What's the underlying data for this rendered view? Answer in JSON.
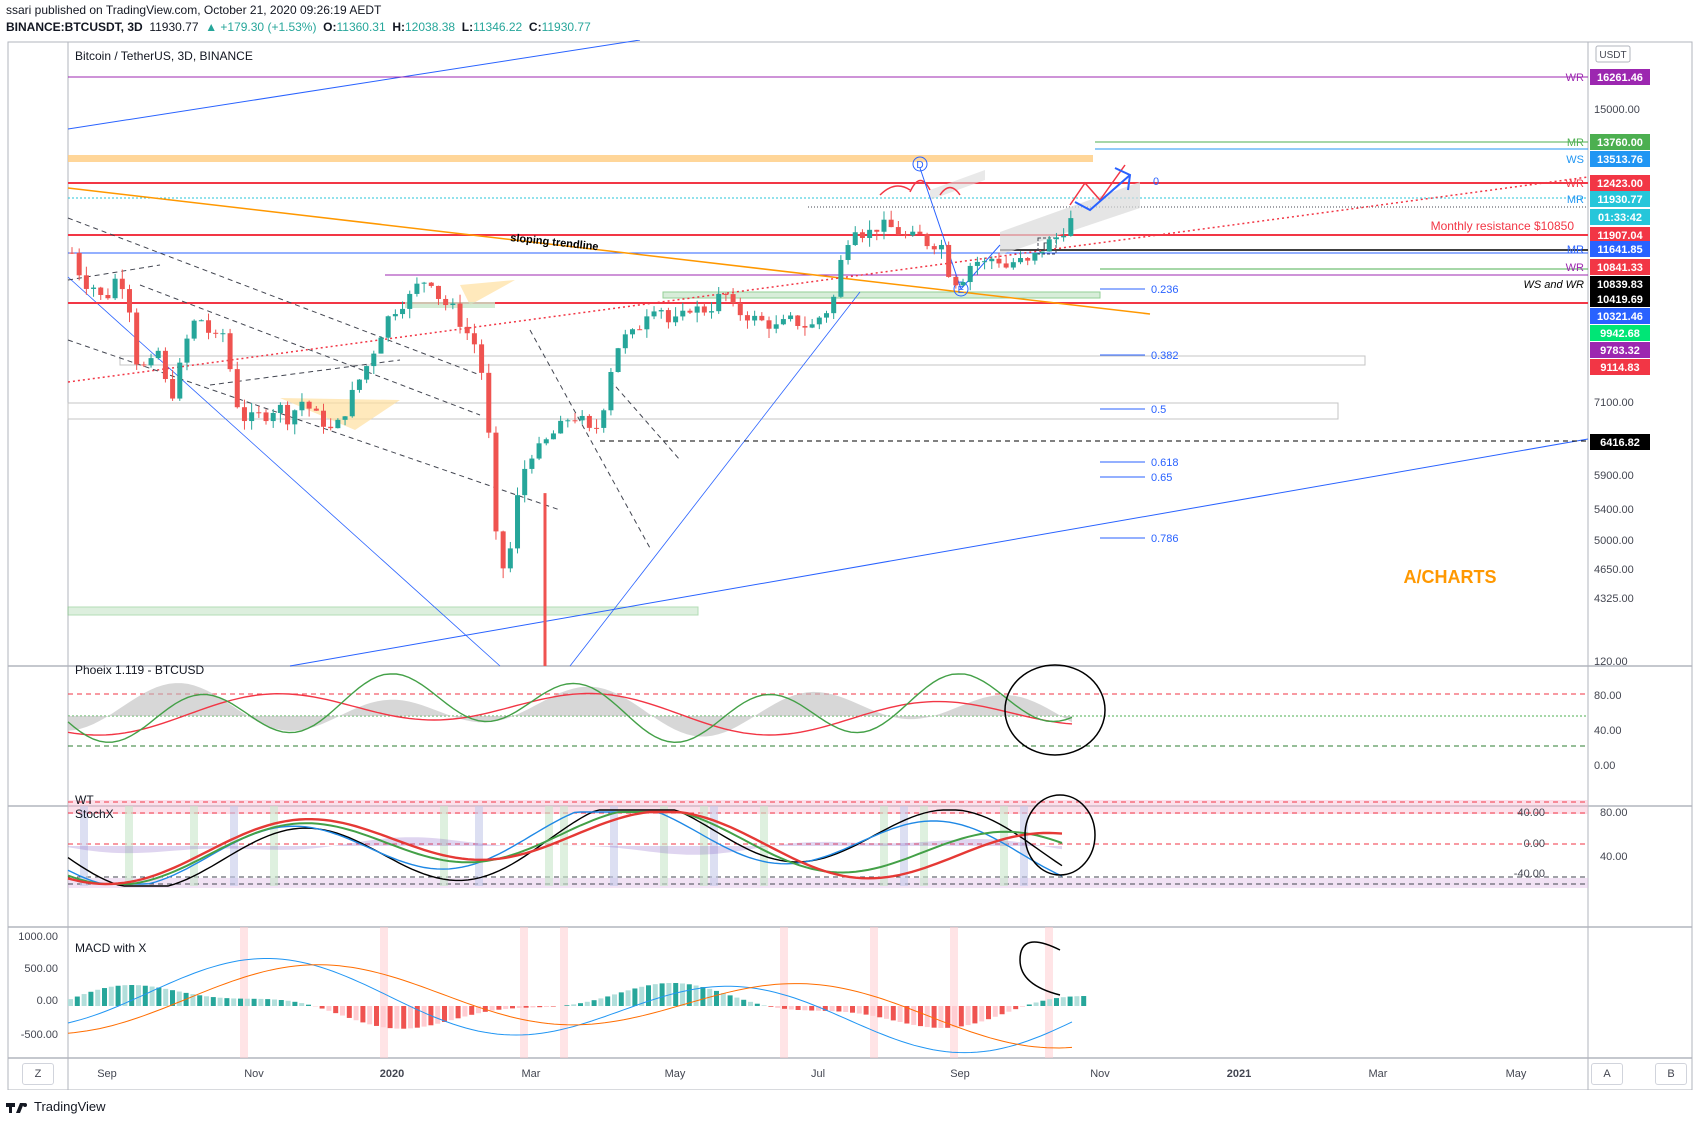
{
  "header": {
    "published": "ssari published on TradingView.com, October 21, 2020 09:26:19 AEDT",
    "symbol": "BINANCE:BTCUSDT, 3D",
    "last": "11930.77",
    "change": "▲ +179.30 (+1.53%)",
    "o_label": "O:",
    "o": "11360.31",
    "h_label": "H:",
    "h": "12038.38",
    "l_label": "L:",
    "l": "11346.22",
    "c_label": "C:",
    "c": "11930.77"
  },
  "colors": {
    "up": "#26a69a",
    "down": "#ef5350",
    "accent_blue": "#2962ff"
  },
  "main_pane": {
    "legend": "Bitcoin / TetherUS, 3D, BINANCE",
    "currency_badge": "USDT",
    "watermark": "A/CHARTS",
    "axis_ticks": [
      "15000.00",
      "7100.00",
      "5900.00",
      "5400.00",
      "5000.00",
      "4650.00",
      "4325.00"
    ],
    "price_labels": [
      {
        "text": "16261.46",
        "bg": "#9c27b0",
        "tag": "WR",
        "tag_color": "#9c27b0"
      },
      {
        "text": "13760.00",
        "bg": "#4caf50",
        "tag": "MR",
        "tag_color": "#4caf50"
      },
      {
        "text": "13513.76",
        "bg": "#2196f3",
        "tag": "WS",
        "tag_color": "#2196f3"
      },
      {
        "text": "12423.00",
        "bg": "#f23645",
        "tag": "WR",
        "tag_color": "#f23645"
      },
      {
        "text": "11930.77",
        "bg": "#26c6da",
        "tag": "MR",
        "tag_color": "#2196f3"
      },
      {
        "text": "01:33:42",
        "bg": "#26c6da",
        "tag": "",
        "tag_color": ""
      },
      {
        "text": "11907.04",
        "bg": "#f23645",
        "tag": "",
        "tag_color": ""
      },
      {
        "text": "11641.85",
        "bg": "#2962ff",
        "tag": "MR",
        "tag_color": "#2962ff"
      },
      {
        "text": "10841.33",
        "bg": "#f23645",
        "tag": "WR",
        "tag_color": "#9c27b0"
      },
      {
        "text": "10839.83",
        "bg": "#000000",
        "tag": "WS and WR",
        "tag_color": "#000000"
      },
      {
        "text": "10419.69",
        "bg": "#000000",
        "tag": "",
        "tag_color": ""
      },
      {
        "text": "10321.46",
        "bg": "#2962ff",
        "tag": "",
        "tag_color": ""
      },
      {
        "text": "9942.68",
        "bg": "#00e676",
        "tag": "",
        "tag_color": ""
      },
      {
        "text": "9783.32",
        "bg": "#9c27b0",
        "tag": "",
        "tag_color": ""
      },
      {
        "text": "9114.83",
        "bg": "#f23645",
        "tag": "",
        "tag_color": ""
      },
      {
        "text": "6416.82",
        "bg": "#000000",
        "tag": "",
        "tag_color": ""
      }
    ],
    "monthly_resistance": "Monthly resistance $10850",
    "sloping_trendline": "sloping trendline",
    "fib_levels": [
      "0",
      "0.236",
      "0.382",
      "0.5",
      "0.618",
      "0.65",
      "0.786"
    ],
    "wave_labels": [
      "D",
      "E",
      "D"
    ]
  },
  "phoeix_pane": {
    "legend": "Phoeix 1.119 - BTCUSD",
    "axis_ticks": [
      "120.00",
      "80.00",
      "40.00",
      "0.00"
    ]
  },
  "wt_pane": {
    "legend_wt": "WT",
    "legend_stoch": "StochX",
    "axis_ticks_left": [
      "40.00",
      "0.00",
      "-40.00"
    ],
    "axis_ticks_right": [
      "80.00",
      "40.00"
    ]
  },
  "macd_pane": {
    "legend": "MACD with X",
    "axis_ticks": [
      "1000.00",
      "500.00",
      "0.00",
      "-500.00"
    ]
  },
  "time_axis": [
    "Sep",
    "Nov",
    "2020",
    "Mar",
    "May",
    "Jul",
    "Sep",
    "Nov",
    "2021",
    "Mar",
    "May"
  ],
  "footer": {
    "z": "Z",
    "a": "A",
    "b": "B",
    "logo": "TradingView"
  },
  "chart_data": {
    "type": "candlestick",
    "title": "Bitcoin / TetherUS, 3D, BINANCE",
    "x_start": "2019-08-13",
    "x_end": "2020-10-20",
    "ylim": [
      4000,
      17000
    ],
    "log_scale": true,
    "ohlc_anchor_closes": [
      11000,
      10200,
      10100,
      9700,
      10300,
      10100,
      8300,
      8200,
      8600,
      7500,
      8300,
      9200,
      9300,
      8800,
      9000,
      7600,
      7200,
      7300,
      7300,
      7500,
      7200,
      7600,
      7400,
      7200,
      7000,
      7300,
      7800,
      8200,
      8700,
      9300,
      9600,
      9800,
      10200,
      10300,
      9700,
      9600,
      9100,
      8800,
      7900,
      5400,
      4800,
      5900,
      6600,
      6700,
      6900,
      7100,
      7300,
      7200,
      6900,
      7500,
      8600,
      8900,
      9000,
      9500,
      9700,
      9200,
      9300,
      9600,
      9500,
      9600,
      10000,
      9500,
      9400,
      9300,
      9200,
      9100,
      9300,
      9200,
      9100,
      9400,
      9600,
      11000,
      11800,
      11500,
      11700,
      11800,
      11600,
      11400,
      11500,
      11200,
      11300,
      10200,
      10300,
      10800,
      10700,
      10900,
      10600,
      10800,
      10700,
      11000,
      11300,
      11500,
      11930
    ],
    "annotations": [
      "sloping trendline",
      "Monthly resistance $10850",
      "A/CHARTS"
    ],
    "key_levels": [
      16261.46,
      13760.0,
      13513.76,
      12423.0,
      11930.77,
      11907.04,
      11641.85,
      10841.33,
      10839.83,
      10419.69,
      10321.46,
      9942.68,
      9783.32,
      9114.83,
      6416.82
    ],
    "fib_retracement": {
      "0": 12423,
      "0.236": 10500,
      "0.382": 9100,
      "0.5": 7550,
      "0.618": 6200,
      "0.65": 5960,
      "0.786": 5050
    }
  }
}
